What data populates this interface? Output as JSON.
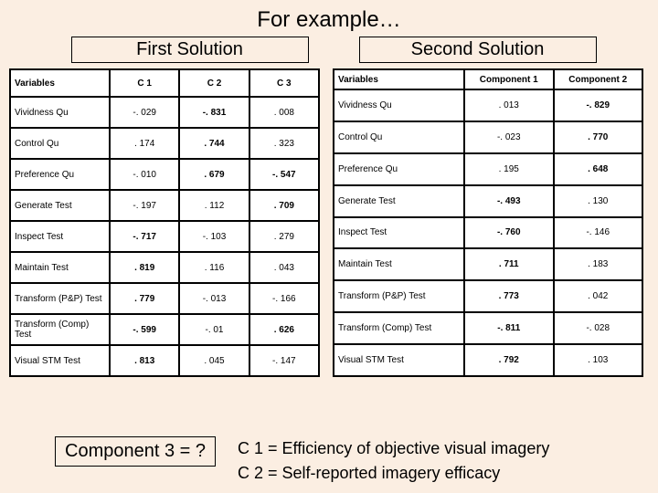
{
  "title": "For example…",
  "sol1_header": "First Solution",
  "sol2_header": "Second Solution",
  "t1": {
    "headers": [
      "Variables",
      "C 1",
      "C 2",
      "C 3"
    ],
    "rows": [
      {
        "v": "Vividness Qu",
        "c1": "-. 029",
        "c2": "-. 831",
        "c3": ". 008",
        "b": [
          false,
          false,
          true,
          false
        ]
      },
      {
        "v": "Control Qu",
        "c1": ". 174",
        "c2": ". 744",
        "c3": ". 323",
        "b": [
          false,
          false,
          true,
          false
        ]
      },
      {
        "v": "Preference Qu",
        "c1": "-. 010",
        "c2": ". 679",
        "c3": "-. 547",
        "b": [
          false,
          false,
          true,
          true
        ]
      },
      {
        "v": "Generate Test",
        "c1": "-. 197",
        "c2": ". 112",
        "c3": ". 709",
        "b": [
          false,
          false,
          false,
          true
        ]
      },
      {
        "v": "Inspect Test",
        "c1": "-. 717",
        "c2": "-. 103",
        "c3": ". 279",
        "b": [
          false,
          true,
          false,
          false
        ]
      },
      {
        "v": "Maintain Test",
        "c1": ". 819",
        "c2": ". 116",
        "c3": ". 043",
        "b": [
          false,
          true,
          false,
          false
        ]
      },
      {
        "v": "Transform (P&P) Test",
        "c1": ". 779",
        "c2": "-. 013",
        "c3": "-. 166",
        "b": [
          false,
          true,
          false,
          false
        ]
      },
      {
        "v": "Transform (Comp) Test",
        "c1": "-. 599",
        "c2": "-. 01",
        "c3": ". 626",
        "b": [
          false,
          true,
          false,
          true
        ]
      },
      {
        "v": "Visual STM Test",
        "c1": ". 813",
        "c2": ". 045",
        "c3": "-. 147",
        "b": [
          false,
          true,
          false,
          false
        ]
      }
    ]
  },
  "t2": {
    "headers": [
      "Variables",
      "Component 1",
      "Component 2"
    ],
    "rows": [
      {
        "v": "Vividness Qu",
        "c1": ". 013",
        "c2": "-. 829",
        "b": [
          false,
          false,
          true
        ]
      },
      {
        "v": "Control Qu",
        "c1": "-. 023",
        "c2": ". 770",
        "b": [
          false,
          false,
          true
        ]
      },
      {
        "v": "Preference Qu",
        "c1": ". 195",
        "c2": ". 648",
        "b": [
          false,
          false,
          true
        ]
      },
      {
        "v": "Generate Test",
        "c1": "-. 493",
        "c2": ". 130",
        "b": [
          false,
          true,
          false
        ]
      },
      {
        "v": "Inspect Test",
        "c1": "-. 760",
        "c2": "-. 146",
        "b": [
          false,
          true,
          false
        ]
      },
      {
        "v": "Maintain Test",
        "c1": ". 711",
        "c2": ". 183",
        "b": [
          false,
          true,
          false
        ]
      },
      {
        "v": "Transform (P&P) Test",
        "c1": ". 773",
        "c2": ". 042",
        "b": [
          false,
          true,
          false
        ]
      },
      {
        "v": "Transform   (Comp) Test",
        "c1": "-. 811",
        "c2": "-. 028",
        "b": [
          false,
          true,
          false
        ]
      },
      {
        "v": "Visual STM Test",
        "c1": ". 792",
        "c2": ". 103",
        "b": [
          false,
          true,
          false
        ]
      }
    ]
  },
  "comp3": "Component 3 = ?",
  "legend1": "C 1 = Efficiency of objective visual imagery",
  "legend2": "C 2 = Self-reported imagery efficacy"
}
